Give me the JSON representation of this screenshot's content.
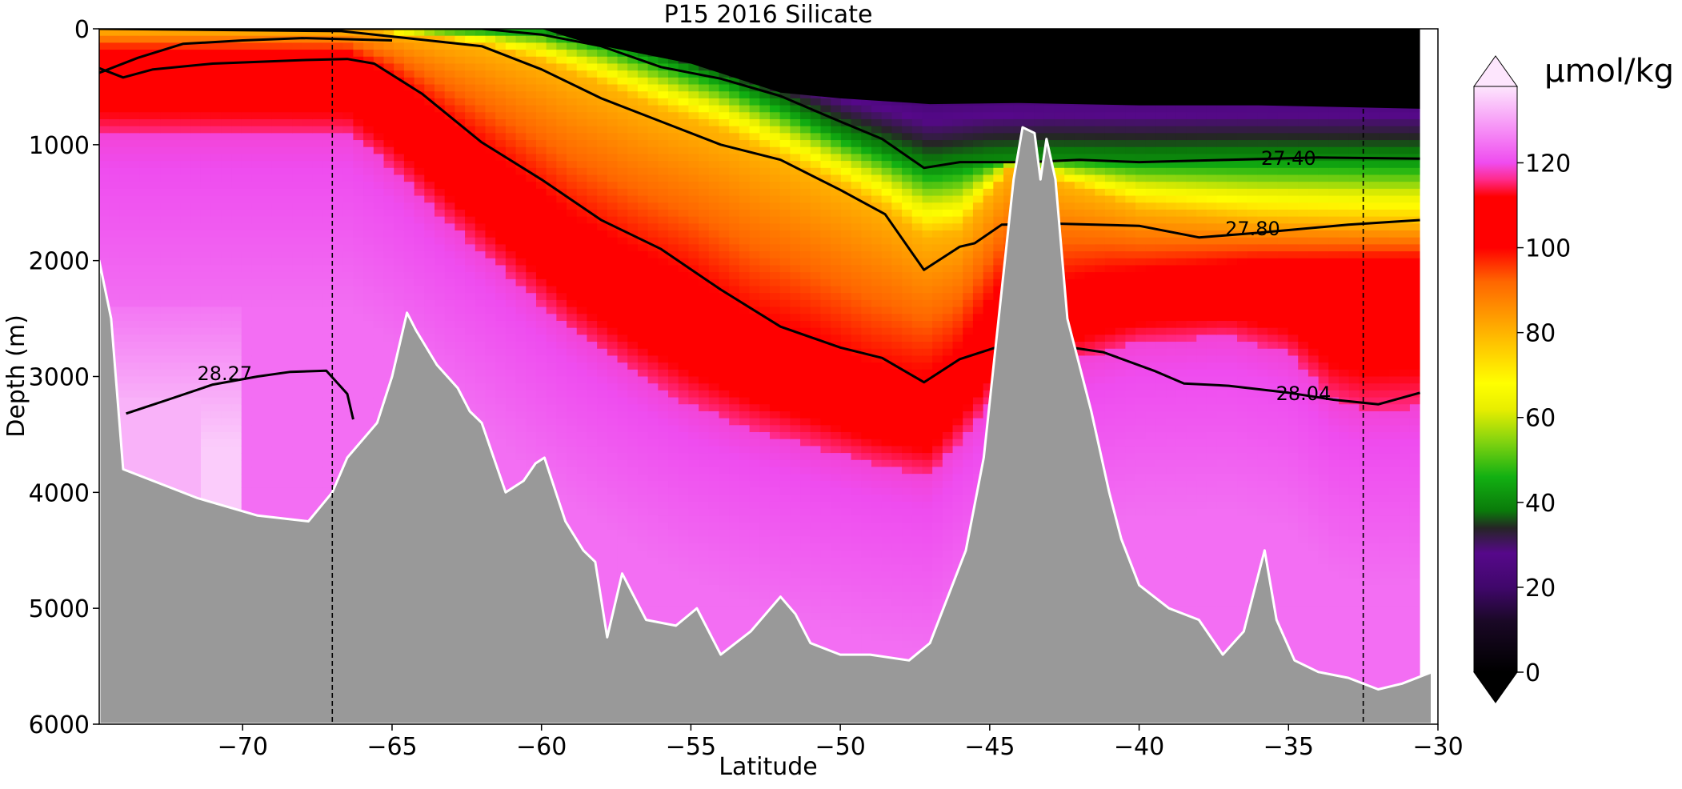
{
  "chart_data": {
    "type": "heatmap",
    "title": "P15 2016 Silicate",
    "xlabel": "Latitude",
    "ylabel": "Depth (m)",
    "xlim": [
      -74.8,
      -30
    ],
    "ylim": [
      6000,
      0
    ],
    "x_ticks": [
      -70,
      -65,
      -60,
      -55,
      -50,
      -45,
      -40,
      -35,
      -30
    ],
    "x_tick_labels": [
      "−70",
      "−65",
      "−60",
      "−55",
      "−50",
      "−45",
      "−40",
      "−35",
      "−30"
    ],
    "y_ticks": [
      0,
      1000,
      2000,
      3000,
      4000,
      5000,
      6000
    ],
    "y_tick_labels": [
      "0",
      "1000",
      "2000",
      "3000",
      "4000",
      "5000",
      "6000"
    ],
    "colorbar": {
      "label": "µmol/kg",
      "ticks": [
        0,
        20,
        40,
        60,
        80,
        100,
        120
      ],
      "tick_labels": [
        "0",
        "20",
        "40",
        "60",
        "80",
        "100",
        "120"
      ],
      "vmin": 0,
      "vmax": 138,
      "extend": "both",
      "colors": [
        {
          "v": 0,
          "c": "#000000"
        },
        {
          "v": 12,
          "c": "#1a0826"
        },
        {
          "v": 20,
          "c": "#40076b"
        },
        {
          "v": 28,
          "c": "#56088a"
        },
        {
          "v": 34,
          "c": "#252525"
        },
        {
          "v": 38,
          "c": "#0a7a0a"
        },
        {
          "v": 46,
          "c": "#12b012"
        },
        {
          "v": 54,
          "c": "#7ed210"
        },
        {
          "v": 62,
          "c": "#e8ee00"
        },
        {
          "v": 68,
          "c": "#ffff00"
        },
        {
          "v": 78,
          "c": "#ffc000"
        },
        {
          "v": 92,
          "c": "#ff6600"
        },
        {
          "v": 100,
          "c": "#ff0000"
        },
        {
          "v": 112,
          "c": "#ff0000"
        },
        {
          "v": 116,
          "c": "#ff2a8a"
        },
        {
          "v": 120,
          "c": "#ef4cef"
        },
        {
          "v": 128,
          "c": "#f690f6"
        },
        {
          "v": 138,
          "c": "#fde6fd"
        }
      ]
    },
    "contour_labels": [
      {
        "text": "27.40",
        "lat": -35.0,
        "depth": 1110
      },
      {
        "text": "27.80",
        "lat": -36.2,
        "depth": 1720
      },
      {
        "text": "28.04",
        "lat": -34.5,
        "depth": 3140
      },
      {
        "text": "28.27",
        "lat": -70.6,
        "depth": 2970
      }
    ],
    "vertical_reference_lines": [
      -67.0,
      -32.5
    ],
    "field_description": "silicate concentration section along P15 line",
    "colors": {
      "bathymetry": "#999999",
      "contour_line": "#000000"
    }
  }
}
